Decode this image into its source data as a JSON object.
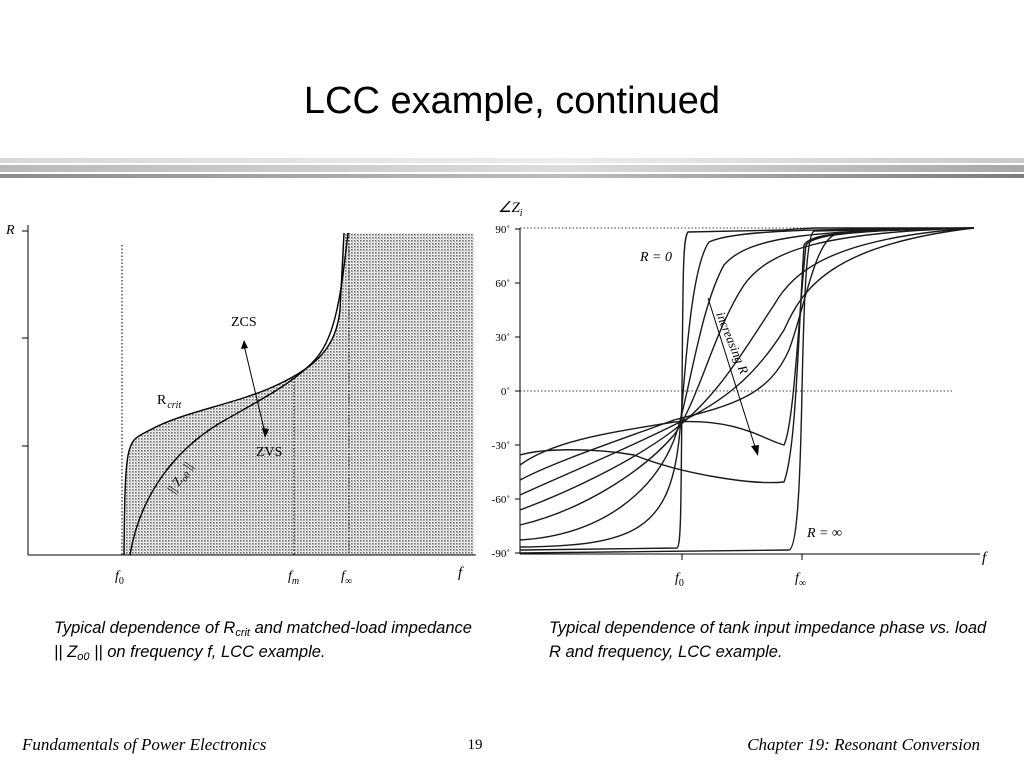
{
  "slide": {
    "title": "LCC example, continued"
  },
  "left_figure": {
    "y_axis_label": "R",
    "tick_f0": "f",
    "tick_f0_sub": "0",
    "tick_fm": "f",
    "tick_fm_sub": "m",
    "tick_finf": "f",
    "tick_finf_sub": "∞",
    "x_axis_label": "f",
    "label_zcs": "ZCS",
    "label_zvs": "ZVS",
    "label_rcrit_main": "R",
    "label_rcrit_sub": "crit",
    "label_zo0_main": "|| Z",
    "label_zo0_sub": "o0",
    "label_zo0_end": " ||"
  },
  "right_figure": {
    "y_axis_label": "∠Z",
    "y_axis_label_sub": "i",
    "y_ticks": [
      "90˚",
      "60˚",
      "30˚",
      "0˚",
      "-30˚",
      "-60˚",
      "-90˚"
    ],
    "label_r0": "R = 0",
    "label_rinf": "R = ∞",
    "label_increasing": "increasing R",
    "tick_f0": "f",
    "tick_f0_sub": "0",
    "tick_finf": "f",
    "tick_finf_sub": "∞",
    "x_axis_label": "f"
  },
  "captions": {
    "left": {
      "p1": "Typical dependence of R",
      "p1_sub": "crit",
      "p2": "  and matched-load impedance || Z",
      "p2_sub": "o0",
      "p3": " || on frequency f, LCC example."
    },
    "right": "Typical dependence of tank input impedance phase vs. load R and frequency, LCC example."
  },
  "footer": {
    "left": "Fundamentals of Power Electronics",
    "page": "19",
    "right": "Chapter 19:  Resonant Conversion"
  }
}
